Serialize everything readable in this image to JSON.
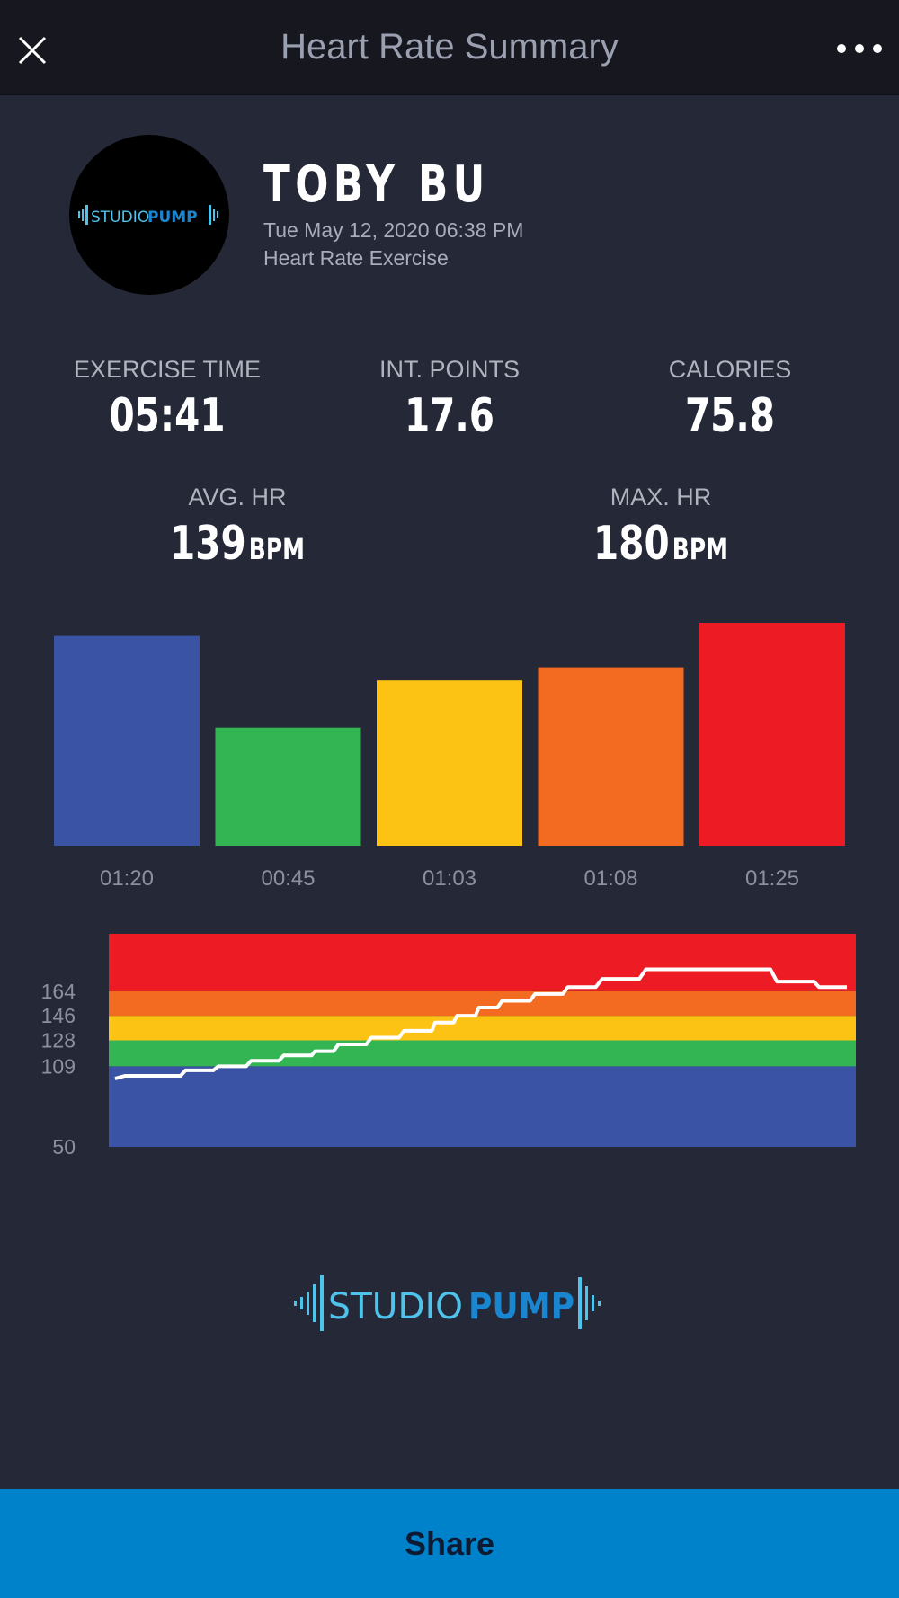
{
  "header": {
    "title": "Heart Rate Summary",
    "close_icon": "close-icon",
    "more_icon": "more-horizontal-icon"
  },
  "profile": {
    "logo_text_studio": "STUDIO",
    "logo_text_pump": "PUMP",
    "name": "TOBY BU",
    "datetime": "Tue May 12, 2020 06:38 PM",
    "exercise_type": "Heart Rate Exercise"
  },
  "stats": {
    "exercise_time": {
      "label": "EXERCISE TIME",
      "value": "05:41"
    },
    "int_points": {
      "label": "INT. POINTS",
      "value": "17.6"
    },
    "calories": {
      "label": "CALORIES",
      "value": "75.8"
    },
    "avg_hr": {
      "label": "AVG. HR",
      "value": "139",
      "unit": "BPM"
    },
    "max_hr": {
      "label": "MAX. HR",
      "value": "180",
      "unit": "BPM"
    }
  },
  "chart_data": [
    {
      "type": "bar",
      "categories": [
        "01:20",
        "00:45",
        "01:03",
        "01:08",
        "01:25"
      ],
      "values": [
        80,
        45,
        63,
        68,
        85
      ],
      "colors": [
        "#3a53a4",
        "#33b553",
        "#fcc314",
        "#f26b21",
        "#ed1c24"
      ],
      "ylim": [
        0,
        85
      ]
    },
    {
      "type": "line",
      "yticks": [
        164,
        146,
        128,
        109,
        50
      ],
      "ylim": [
        50,
        206
      ],
      "zones": [
        {
          "from": 50,
          "to": 109,
          "color": "#3a53a4"
        },
        {
          "from": 109,
          "to": 128,
          "color": "#33b553"
        },
        {
          "from": 128,
          "to": 146,
          "color": "#fcc314"
        },
        {
          "from": 146,
          "to": 164,
          "color": "#f26b21"
        },
        {
          "from": 164,
          "to": 206,
          "color": "#ed1c24"
        }
      ],
      "line_color": "#ffffff",
      "x": [
        0,
        0.6,
        0.9,
        1.2,
        1.5,
        1.8,
        2.0,
        2.3,
        2.6,
        2.9,
        3.1,
        3.3,
        3.5,
        3.8,
        4.1,
        4.4,
        4.8,
        5.2,
        5.6,
        6.0,
        6.4,
        6.7
      ],
      "y": [
        100,
        102,
        106,
        109,
        113,
        117,
        120,
        125,
        130,
        135,
        141,
        146,
        152,
        157,
        162,
        167,
        173,
        180,
        180,
        180,
        171,
        167
      ]
    }
  ],
  "footer_logo": {
    "studio": "STUDIO",
    "pump": "PUMP"
  },
  "share": {
    "label": "Share"
  }
}
